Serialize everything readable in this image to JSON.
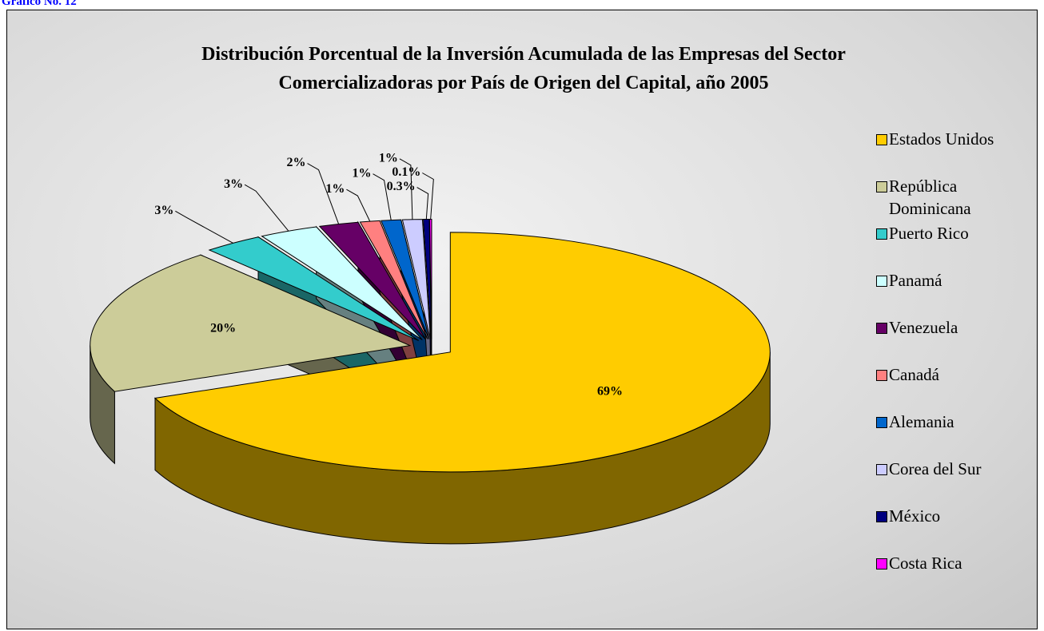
{
  "caption": "Gráfico No. 12",
  "chart_data": {
    "type": "pie",
    "title": "Distribución Porcentual de la Inversión Acumulada de las Empresas del Sector Comercializadoras por País de Origen del Capital, año 2005",
    "categories": [
      "Estados Unidos",
      "República Dominicana",
      "Puerto Rico",
      "Panamá",
      "Venezuela",
      "Canadá",
      "Alemania",
      "Corea del Sur",
      "México",
      "Costa Rica"
    ],
    "values": [
      69,
      20,
      3,
      3,
      2,
      1,
      1,
      1,
      0.3,
      0.1
    ],
    "value_labels": [
      "69%",
      "20%",
      "3%",
      "3%",
      "2%",
      "1%",
      "1%",
      "1%",
      "0.3%",
      "0.1%"
    ],
    "colors": [
      "#ffcc00",
      "#cccc99",
      "#33cccc",
      "#ccffff",
      "#660066",
      "#ff8080",
      "#0066cc",
      "#ccccff",
      "#000080",
      "#ff00ff"
    ],
    "legend": "right"
  }
}
